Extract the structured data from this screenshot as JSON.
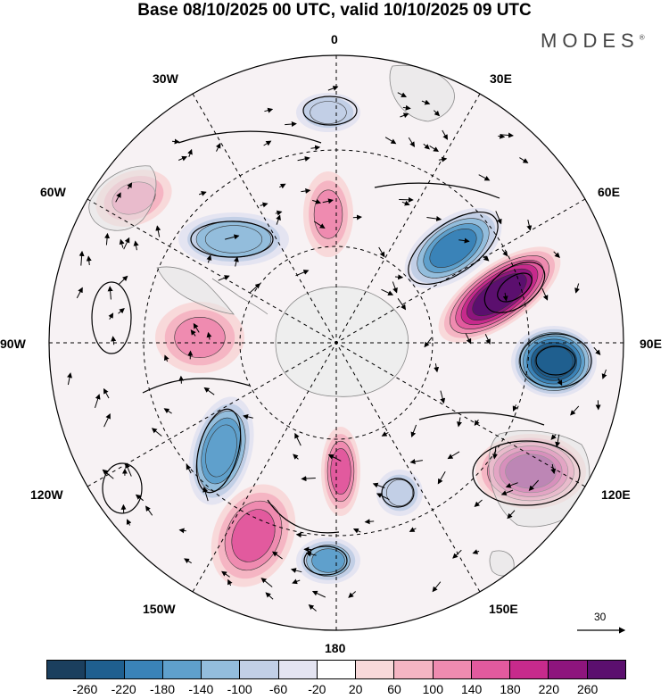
{
  "title": "Base 08/10/2025 00 UTC, valid 10/10/2025 09 UTC",
  "brand": "MODES",
  "brand_mark": "®",
  "longitude_labels": {
    "n0": "0",
    "n30e": "30E",
    "n60e": "60E",
    "n90e": "90E",
    "n120e": "120E",
    "n150e": "150E",
    "n180": "180",
    "n150w": "150W",
    "n120w": "120W",
    "n90w": "90W",
    "n60w": "60W",
    "n30w": "30W"
  },
  "reference_vector": {
    "value": "30",
    "icon": "arrow-right-icon"
  },
  "colorbar": {
    "ticks": [
      "-260",
      "-220",
      "-180",
      "-140",
      "-100",
      "-60",
      "-20",
      "20",
      "60",
      "100",
      "140",
      "180",
      "220",
      "260"
    ],
    "colors": [
      "#1b3f5e",
      "#1f5f8f",
      "#3a83b8",
      "#5fa0cc",
      "#93bddc",
      "#c2cfe6",
      "#e4e4f1",
      "#ffffff",
      "#f8d9da",
      "#f5b5c3",
      "#ef8bb0",
      "#e25a9e",
      "#c72a8c",
      "#8e157d",
      "#5b0f6e"
    ]
  },
  "map": {
    "projection": "south-polar-stereographic",
    "anomalies": [
      {
        "name": "anomaly-neg-90e",
        "sign": "negative",
        "value": -260
      },
      {
        "name": "anomaly-pos-60e",
        "sign": "positive",
        "value": 260
      },
      {
        "name": "anomaly-neg-45e",
        "sign": "negative",
        "value": -200
      },
      {
        "name": "anomaly-pos-120e",
        "sign": "positive",
        "value": 220
      },
      {
        "name": "anomaly-neg-110w",
        "sign": "negative",
        "value": -180
      },
      {
        "name": "anomaly-pos-150w",
        "sign": "positive",
        "value": 160
      },
      {
        "name": "anomaly-neg-60w",
        "sign": "negative",
        "value": -140
      },
      {
        "name": "anomaly-pos-90w",
        "sign": "positive",
        "value": 120
      },
      {
        "name": "anomaly-neg-170e",
        "sign": "negative",
        "value": -160
      },
      {
        "name": "anomaly-pos-170w",
        "sign": "positive",
        "value": 140
      },
      {
        "name": "anomaly-pos-0",
        "sign": "positive",
        "value": 120
      },
      {
        "name": "anomaly-neg-10w",
        "sign": "negative",
        "value": -100
      },
      {
        "name": "anomaly-pos-60w",
        "sign": "positive",
        "value": 100
      },
      {
        "name": "anomaly-neg-140e",
        "sign": "negative",
        "value": -100
      }
    ]
  }
}
